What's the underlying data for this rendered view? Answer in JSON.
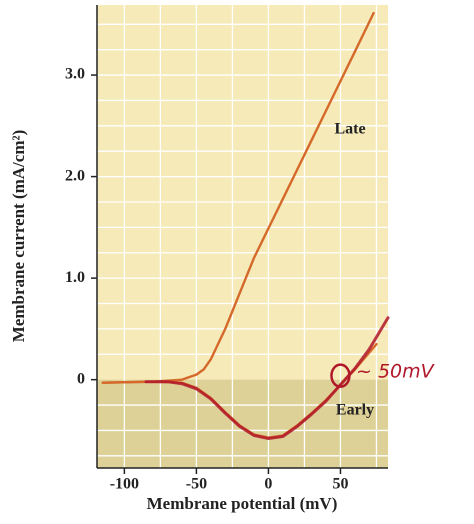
{
  "chart_data": {
    "type": "line",
    "xlabel": "Membrane potential (mV)",
    "ylabel": "Membrane current (mA/cm²)",
    "xlim": [
      -119,
      83
    ],
    "ylim": [
      -0.87,
      3.69
    ],
    "xticks": [
      -100,
      -50,
      0,
      50
    ],
    "yticks": [
      0,
      {
        "value": 1,
        "label": "1.0"
      },
      {
        "value": 2,
        "label": "2.0"
      },
      {
        "value": 3,
        "label": "3.0"
      }
    ],
    "x_gridlines": [
      -100,
      -75,
      -50,
      -25,
      0,
      25,
      50,
      75
    ],
    "y_gridlines": [
      -0.75,
      -0.5,
      -0.25,
      0.25,
      0.5,
      0.75,
      1,
      1.25,
      1.5,
      1.75,
      2,
      2.25,
      2.5,
      2.75,
      3,
      3.25,
      3.5
    ],
    "grid": true,
    "series": [
      {
        "name": "Late",
        "color": "#d4692a",
        "x": [
          -115,
          -80,
          -60,
          -50,
          -45,
          -40,
          -30,
          -20,
          -10,
          0,
          10,
          20,
          30,
          40,
          50,
          60,
          73
        ],
        "values": [
          -0.03,
          -0.02,
          0,
          0.05,
          0.1,
          0.2,
          0.5,
          0.85,
          1.2,
          1.49,
          1.78,
          2.07,
          2.36,
          2.65,
          2.94,
          3.23,
          3.61
        ]
      },
      {
        "name": "Early",
        "color": "#d4692a",
        "x": [
          -115,
          -80,
          -60,
          -50,
          -40,
          -30,
          -20,
          -10,
          0,
          10,
          20,
          30,
          40,
          50,
          60,
          75
        ],
        "values": [
          -0.03,
          -0.02,
          -0.03,
          -0.08,
          -0.18,
          -0.32,
          -0.45,
          -0.54,
          -0.57,
          -0.55,
          -0.45,
          -0.33,
          -0.2,
          -0.05,
          0.1,
          0.35
        ]
      },
      {
        "color": "#b0182a",
        "x": [
          -85,
          -70,
          -60,
          -50,
          -40,
          -30,
          -20,
          -10,
          0,
          10,
          20,
          30,
          40,
          50,
          60,
          70,
          83
        ],
        "values": [
          -0.02,
          -0.02,
          -0.04,
          -0.09,
          -0.19,
          -0.33,
          -0.46,
          -0.55,
          -0.58,
          -0.56,
          -0.46,
          -0.34,
          -0.21,
          -0.05,
          0.11,
          0.3,
          0.61
        ]
      }
    ],
    "annotation": "~ 50mV"
  }
}
